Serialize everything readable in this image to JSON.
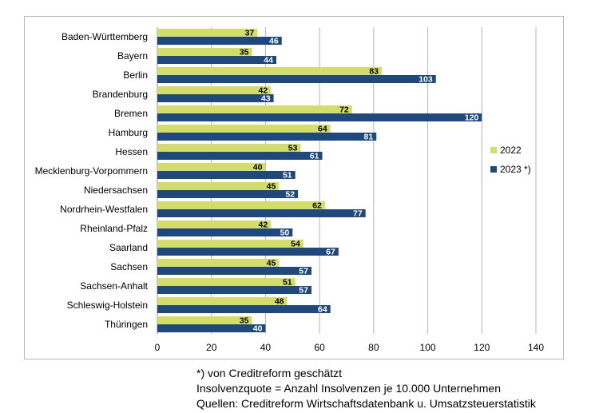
{
  "chart_data": {
    "type": "bar",
    "orientation": "horizontal",
    "categories": [
      "Baden-Württemberg",
      "Bayern",
      "Berlin",
      "Brandenburg",
      "Bremen",
      "Hamburg",
      "Hessen",
      "Mecklenburg-Vorpommern",
      "Niedersachsen",
      "Nordrhein-Westfalen",
      "Rheinland-Pfalz",
      "Saarland",
      "Sachsen",
      "Sachsen-Anhalt",
      "Schleswig-Holstein",
      "Thüringen"
    ],
    "series": [
      {
        "name": "2022",
        "color": "#d4dc6a",
        "values": [
          37,
          35,
          83,
          42,
          72,
          64,
          53,
          40,
          45,
          62,
          42,
          54,
          45,
          51,
          48,
          35
        ]
      },
      {
        "name": "2023 *)",
        "color": "#1f497d",
        "values": [
          46,
          44,
          103,
          43,
          120,
          81,
          61,
          51,
          52,
          77,
          50,
          67,
          57,
          57,
          64,
          40
        ]
      }
    ],
    "xlim": [
      0,
      140
    ],
    "xticks": [
      0,
      20,
      40,
      60,
      80,
      100,
      120,
      140
    ],
    "grid": "vertical",
    "legend_position": "right"
  },
  "notes": [
    "*) von Creditreform geschätzt",
    "Insolvenzquote = Anzahl Insolvenzen je 10.000 Unternehmen",
    "Quellen: Creditreform Wirtschaftsdatenbank u. Umsatzsteuerstatistik"
  ]
}
